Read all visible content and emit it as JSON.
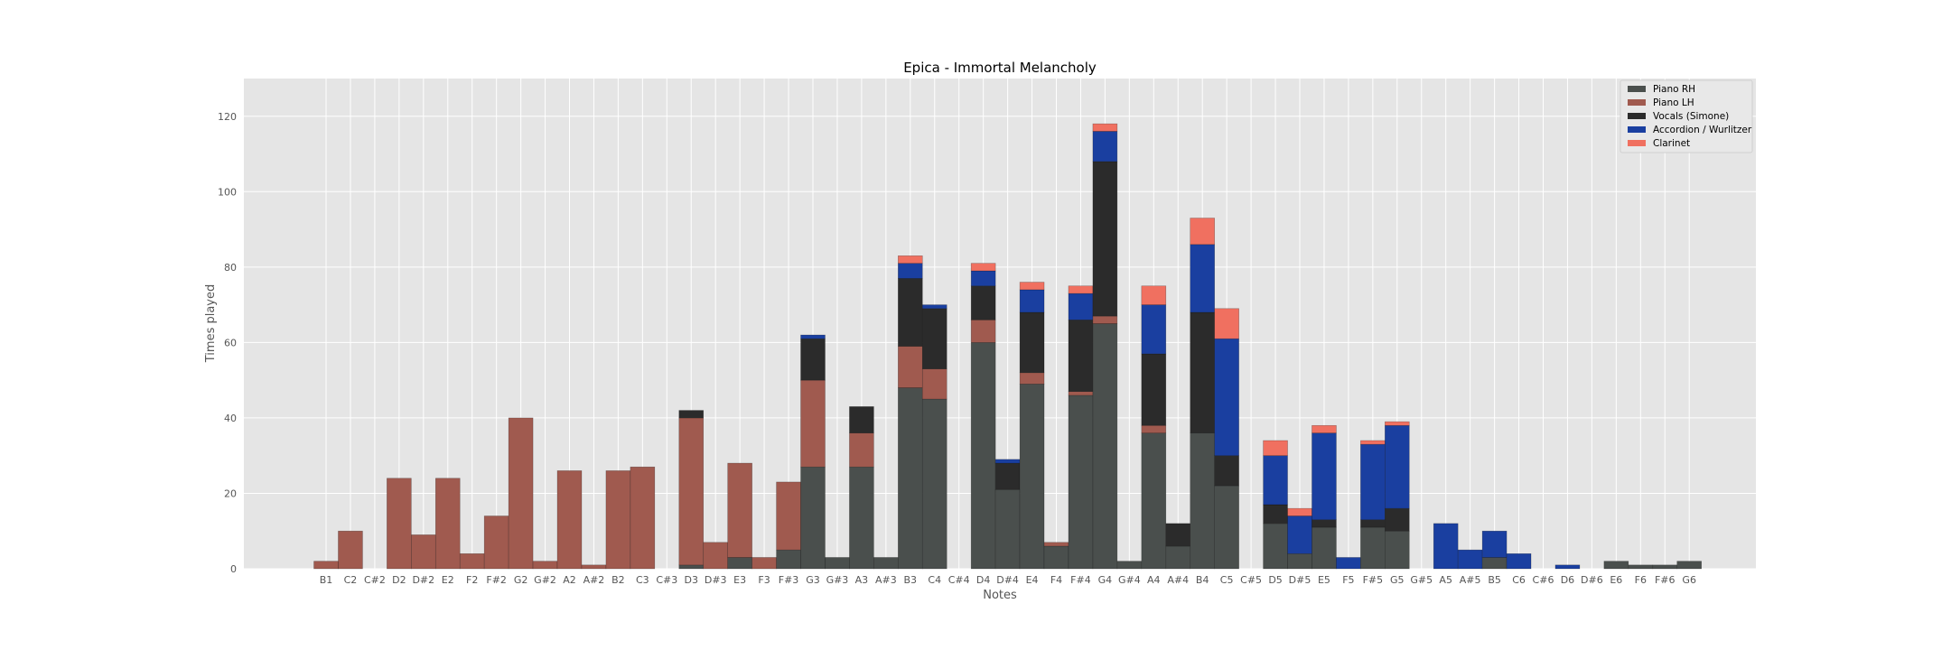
{
  "chart_data": {
    "type": "bar",
    "stacked": true,
    "title": "Epica - Immortal Melancholy",
    "xlabel": "Notes",
    "ylabel": "Times played",
    "ylim": [
      0,
      130
    ],
    "yticks": [
      0,
      20,
      40,
      60,
      80,
      100,
      120
    ],
    "grid": true,
    "legend_position": "top-right",
    "categories": [
      "B1",
      "C2",
      "C#2",
      "D2",
      "D#2",
      "E2",
      "F2",
      "F#2",
      "G2",
      "G#2",
      "A2",
      "A#2",
      "B2",
      "C3",
      "C#3",
      "D3",
      "D#3",
      "E3",
      "F3",
      "F#3",
      "G3",
      "G#3",
      "A3",
      "A#3",
      "B3",
      "C4",
      "C#4",
      "D4",
      "D#4",
      "E4",
      "F4",
      "F#4",
      "G4",
      "G#4",
      "A4",
      "A#4",
      "B4",
      "C5",
      "C#5",
      "D5",
      "D#5",
      "E5",
      "F5",
      "F#5",
      "G5",
      "G#5",
      "A5",
      "A#5",
      "B5",
      "C6",
      "C#6",
      "D6",
      "D#6",
      "E6",
      "F6",
      "F#6",
      "G6"
    ],
    "series": [
      {
        "name": "Piano RH",
        "color": "#4a4f4d",
        "values": [
          0,
          0,
          0,
          0,
          0,
          0,
          0,
          0,
          0,
          0,
          0,
          0,
          0,
          0,
          0,
          1,
          0,
          3,
          0,
          5,
          27,
          3,
          27,
          3,
          48,
          45,
          0,
          60,
          21,
          49,
          6,
          46,
          65,
          2,
          36,
          6,
          36,
          22,
          0,
          12,
          4,
          11,
          0,
          11,
          10,
          0,
          0,
          0,
          3,
          0,
          0,
          0,
          0,
          2,
          1,
          1,
          2
        ]
      },
      {
        "name": "Piano LH",
        "color": "#a05a4f",
        "values": [
          2,
          10,
          0,
          24,
          9,
          24,
          4,
          14,
          40,
          2,
          26,
          1,
          26,
          27,
          0,
          39,
          7,
          25,
          3,
          18,
          23,
          0,
          9,
          0,
          11,
          8,
          0,
          6,
          0,
          3,
          1,
          1,
          2,
          0,
          2,
          0,
          0,
          0,
          0,
          0,
          0,
          0,
          0,
          0,
          0,
          0,
          0,
          0,
          0,
          0,
          0,
          0,
          0,
          0,
          0,
          0,
          0
        ]
      },
      {
        "name": "Vocals (Simone)",
        "color": "#2b2b2b",
        "values": [
          0,
          0,
          0,
          0,
          0,
          0,
          0,
          0,
          0,
          0,
          0,
          0,
          0,
          0,
          0,
          2,
          0,
          0,
          0,
          0,
          11,
          0,
          7,
          0,
          18,
          16,
          0,
          9,
          7,
          16,
          0,
          19,
          41,
          0,
          19,
          6,
          32,
          8,
          0,
          5,
          0,
          2,
          0,
          2,
          6,
          0,
          0,
          0,
          0,
          0,
          0,
          0,
          0,
          0,
          0,
          0,
          0
        ]
      },
      {
        "name": "Accordion / Wurlitzer",
        "color": "#1a3fa0",
        "values": [
          0,
          0,
          0,
          0,
          0,
          0,
          0,
          0,
          0,
          0,
          0,
          0,
          0,
          0,
          0,
          0,
          0,
          0,
          0,
          0,
          1,
          0,
          0,
          0,
          4,
          1,
          0,
          4,
          1,
          6,
          0,
          7,
          8,
          0,
          13,
          0,
          18,
          31,
          0,
          13,
          10,
          23,
          3,
          20,
          22,
          0,
          12,
          5,
          7,
          4,
          0,
          1,
          0,
          0,
          0,
          0,
          0
        ]
      },
      {
        "name": "Clarinet",
        "color": "#f07060",
        "values": [
          0,
          0,
          0,
          0,
          0,
          0,
          0,
          0,
          0,
          0,
          0,
          0,
          0,
          0,
          0,
          0,
          0,
          0,
          0,
          0,
          0,
          0,
          0,
          0,
          2,
          0,
          0,
          2,
          0,
          2,
          0,
          2,
          2,
          0,
          5,
          0,
          7,
          8,
          0,
          4,
          2,
          2,
          0,
          1,
          1,
          0,
          0,
          0,
          0,
          0,
          0,
          0,
          0,
          0,
          0,
          0,
          0
        ]
      }
    ]
  }
}
